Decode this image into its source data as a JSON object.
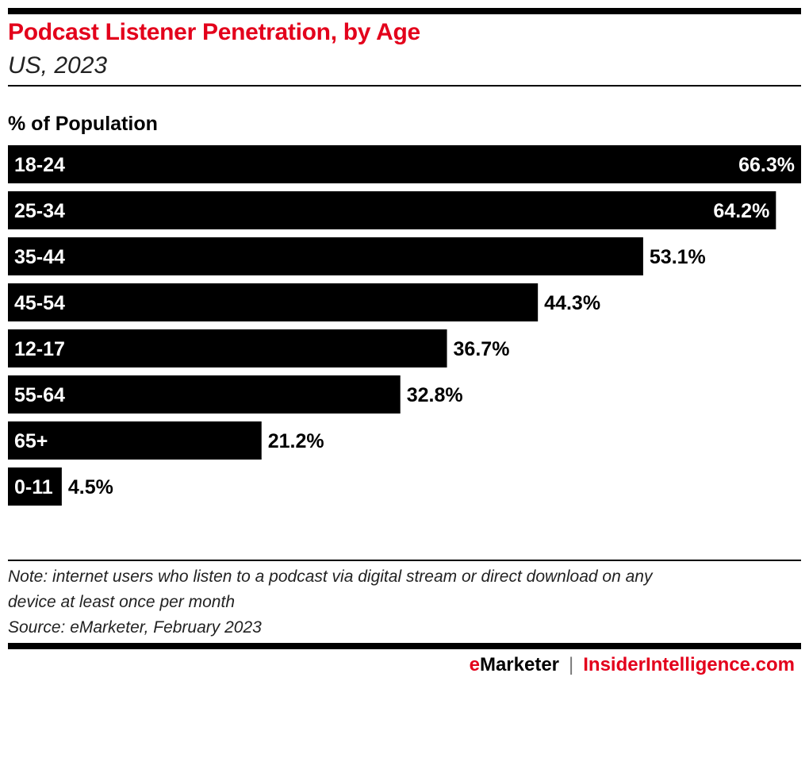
{
  "chart_data": {
    "type": "bar",
    "orientation": "horizontal",
    "title": "Podcast Listener Penetration, by Age",
    "subtitle": "US, 2023",
    "ylabel": "% of Population",
    "categories": [
      "18-24",
      "25-34",
      "35-44",
      "45-54",
      "12-17",
      "55-64",
      "65+",
      "0-11"
    ],
    "values": [
      66.3,
      64.2,
      53.1,
      44.3,
      36.7,
      32.8,
      21.2,
      4.5
    ],
    "value_labels": [
      "66.3%",
      "64.2%",
      "53.1%",
      "44.3%",
      "36.7%",
      "32.8%",
      "21.2%",
      "4.5%"
    ],
    "xlim": [
      0,
      66.3
    ],
    "grid": false,
    "bar_color": "#000000",
    "title_color": "#e3001b"
  },
  "footer": {
    "note_line1": "Note: internet users who listen to a podcast via digital stream or direct download on any",
    "note_line2": "device at least once per month",
    "source": "Source: eMarketer, February 2023",
    "logo_e": "e",
    "logo_marketer": "Marketer",
    "logo_sep": "|",
    "logo_ii": "InsiderIntelligence.com"
  }
}
